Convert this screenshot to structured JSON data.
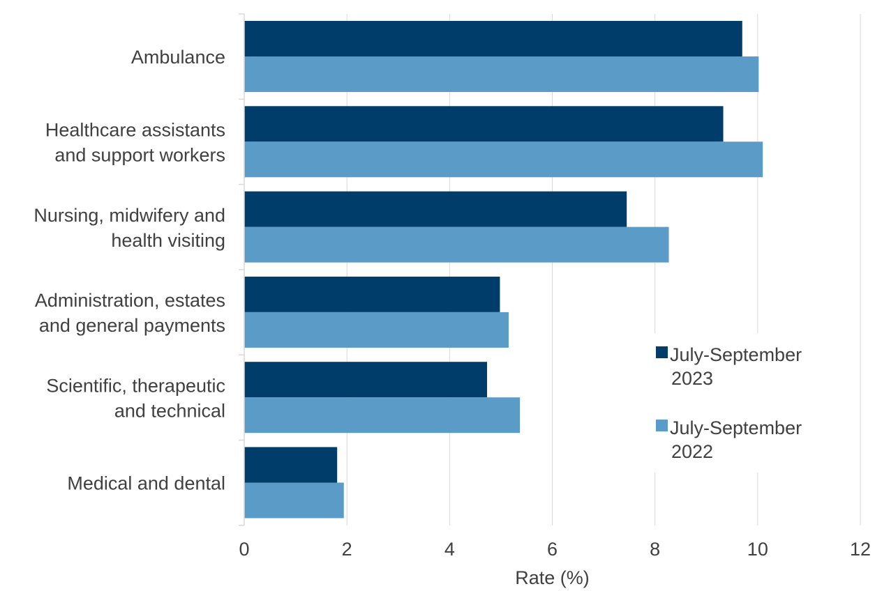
{
  "chart_data": {
    "type": "bar",
    "orientation": "horizontal",
    "categories": [
      [
        "Ambulance"
      ],
      [
        "Healthcare assistants",
        "and support workers"
      ],
      [
        "Nursing, midwifery and",
        "health visiting"
      ],
      [
        "Administration, estates",
        "and general payments"
      ],
      [
        "Scientific, therapeutic",
        "and technical"
      ],
      [
        "Medical and dental"
      ]
    ],
    "series": [
      {
        "name": [
          "July-September",
          "2023"
        ],
        "color": "#003d6b",
        "values": [
          9.7,
          9.33,
          7.45,
          4.98,
          4.73,
          1.81
        ]
      },
      {
        "name": [
          "July-September",
          "2022"
        ],
        "color": "#5b9bc8",
        "values": [
          10.02,
          10.1,
          8.27,
          5.15,
          5.37,
          1.94
        ]
      }
    ],
    "xlabel": "Rate (%)",
    "xlim": [
      0,
      12
    ],
    "xticks": [
      0,
      2,
      4,
      6,
      8,
      10,
      12
    ],
    "grid": "vertical",
    "legend_position": "right"
  }
}
